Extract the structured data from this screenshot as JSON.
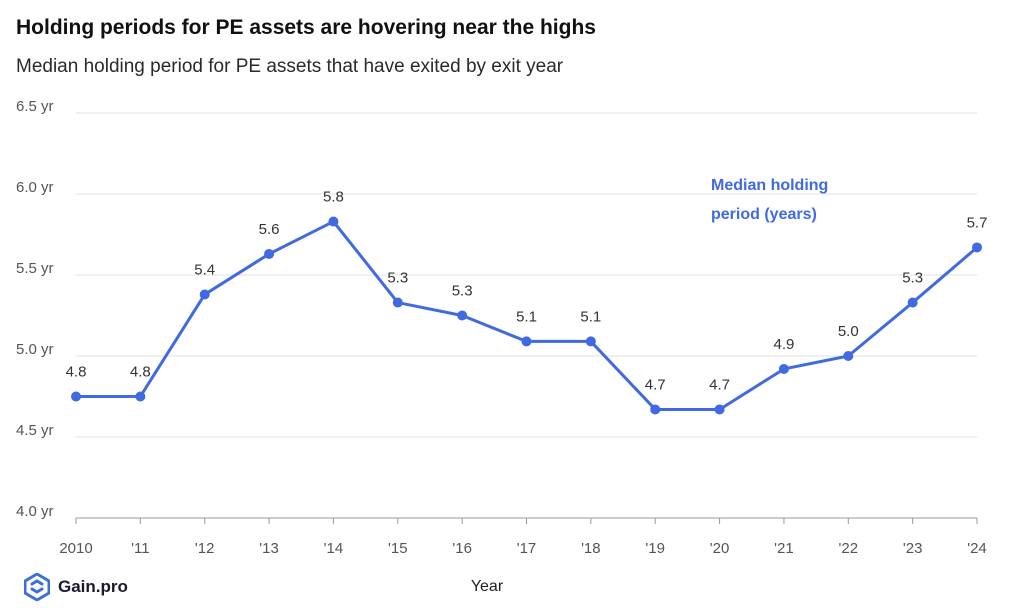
{
  "header": {
    "title": "Holding periods for PE assets are hovering near the highs",
    "subtitle": "Median holding period for PE assets that have exited by exit year"
  },
  "branding": {
    "logo_text": "Gain.pro",
    "logo_color": "#3b6fe0"
  },
  "chart_data": {
    "type": "line",
    "xlabel": "Year",
    "ylabel": "",
    "categories": [
      "2010",
      "'11",
      "'12",
      "'13",
      "'14",
      "'15",
      "'16",
      "'17",
      "'18",
      "'19",
      "'20",
      "'21",
      "'22",
      "'23",
      "'24"
    ],
    "ylim": [
      4.0,
      6.5
    ],
    "yticks": [
      4.0,
      4.5,
      5.0,
      5.5,
      6.0,
      6.5
    ],
    "ytick_labels": [
      "4.0 yr",
      "4.5 yr",
      "5.0 yr",
      "5.5 yr",
      "6.0 yr",
      "6.5 yr"
    ],
    "grid": true,
    "series": [
      {
        "name": "Median holding period (years)",
        "name_lines": [
          "Median holding",
          "period (years)"
        ],
        "color": "#4169e1",
        "values": [
          4.75,
          4.75,
          5.38,
          5.63,
          5.83,
          5.33,
          5.25,
          5.09,
          5.09,
          4.67,
          4.67,
          4.92,
          5.0,
          5.33,
          5.67
        ],
        "labels": [
          "4.8",
          "4.8",
          "5.4",
          "5.6",
          "5.8",
          "5.3",
          "5.3",
          "5.1",
          "5.1",
          "4.7",
          "4.7",
          "4.9",
          "5.0",
          "5.3",
          "5.7"
        ]
      }
    ]
  }
}
